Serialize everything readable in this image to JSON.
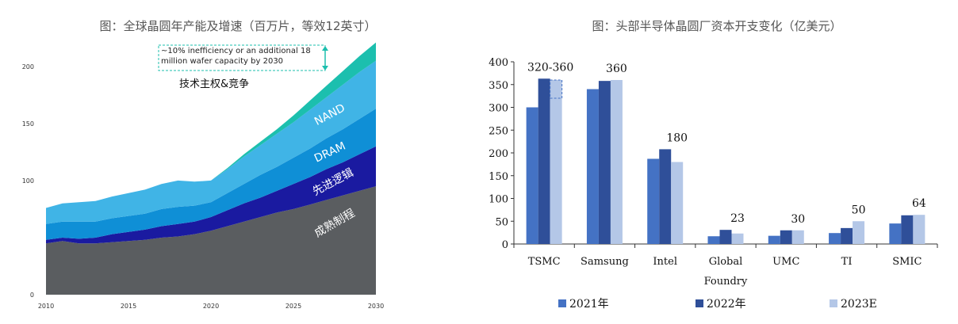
{
  "chart_data": [
    {
      "type": "area",
      "title": "图：全球晶圆年产能及增速（百万片，等效12英寸）",
      "x_ticks": [
        2010,
        2015,
        2020,
        2025,
        2030
      ],
      "y_ticks": [
        0,
        100,
        150,
        200
      ],
      "ylim": [
        0,
        220
      ],
      "x": [
        2010,
        2011,
        2012,
        2013,
        2014,
        2015,
        2016,
        2017,
        2018,
        2019,
        2020,
        2021,
        2022,
        2023,
        2024,
        2025,
        2026,
        2027,
        2028,
        2029,
        2030
      ],
      "series": [
        {
          "name": "成熟制程",
          "color": "#5a5d60",
          "values": [
            45,
            47,
            45,
            45,
            46,
            47,
            48,
            50,
            51,
            53,
            56,
            60,
            64,
            68,
            72,
            75,
            79,
            83,
            87,
            91,
            95
          ]
        },
        {
          "name": "先进逻辑",
          "color": "#1a1aa0",
          "values": [
            3,
            3,
            4,
            5,
            7,
            8,
            9,
            10,
            11,
            11,
            12,
            14,
            16,
            17,
            19,
            22,
            24,
            27,
            29,
            32,
            35
          ]
        },
        {
          "name": "DRAM",
          "color": "#0f8fd6",
          "values": [
            14,
            14,
            15,
            14,
            14,
            14,
            14,
            15,
            15,
            14,
            13,
            15,
            17,
            20,
            21,
            23,
            25,
            27,
            29,
            31,
            33
          ]
        },
        {
          "name": "NAND",
          "color": "#40b4e6",
          "values": [
            14,
            16,
            17,
            18,
            19,
            20,
            21,
            22,
            23,
            21,
            19,
            21,
            24,
            26,
            29,
            31,
            34,
            36,
            39,
            41,
            42
          ]
        },
        {
          "name": "技术主权&竞争",
          "color": "#1cbfae",
          "values": [
            0,
            0,
            0,
            0,
            0,
            0,
            0,
            0,
            0,
            0,
            0,
            1,
            2,
            3,
            4,
            6,
            8,
            10,
            12,
            14,
            16
          ]
        }
      ],
      "annotation": "~10% inefficiency or an additional 18 million wafer capacity by 2030",
      "label_tech": "技术主权&竞争"
    },
    {
      "type": "bar",
      "title": "图：头部半导体晶圆厂资本开支变化（亿美元）",
      "xlabel": "Foundry",
      "ylim": [
        0,
        400
      ],
      "y_ticks": [
        0,
        50,
        100,
        150,
        200,
        250,
        300,
        350,
        400
      ],
      "categories": [
        "TSMC",
        "Samsung",
        "Intel",
        "Global",
        "UMC",
        "TI",
        "SMIC"
      ],
      "series": [
        {
          "name": "2021年",
          "color": "#4472c4",
          "values": [
            300,
            340,
            187,
            17,
            18,
            24,
            45
          ]
        },
        {
          "name": "2022年",
          "color": "#2f4f99",
          "values": [
            363,
            358,
            208,
            31,
            30,
            35,
            63
          ]
        },
        {
          "name": "2023E",
          "color": "#b4c7e7",
          "values": [
            320,
            360,
            180,
            23,
            30,
            50,
            64
          ]
        }
      ],
      "tsmc_2023_upper": 360,
      "bar_labels": [
        "320-360",
        "360",
        "180",
        "23",
        "30",
        "50",
        "64"
      ]
    }
  ]
}
